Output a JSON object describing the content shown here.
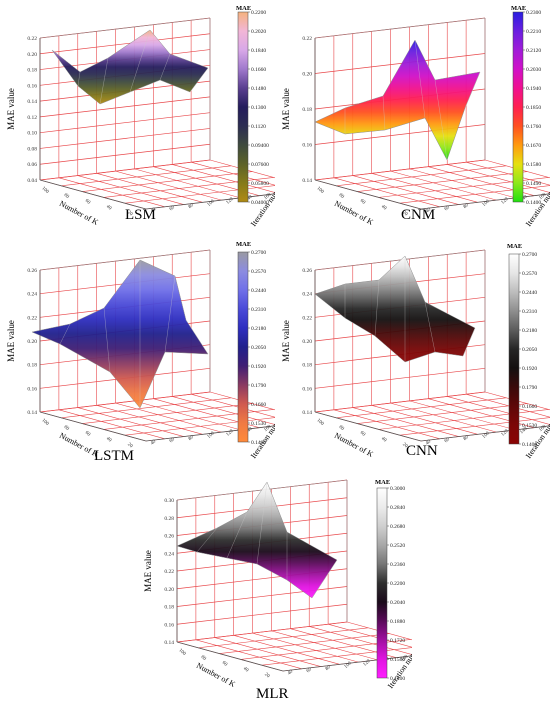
{
  "charts": [
    {
      "id": "lsm",
      "caption": "LSM",
      "zlabel": "MAE value",
      "xlabel": "Number of K",
      "ylabel": "Iteration number",
      "zticks": [
        "0.04",
        "0.06",
        "0.08",
        "0.10",
        "0.12",
        "0.14",
        "0.16",
        "0.18",
        "0.20",
        "0.22"
      ],
      "xticks": [
        "100",
        "80",
        "60",
        "40",
        "20"
      ],
      "yticks": [
        "40",
        "60",
        "80",
        "100",
        "120",
        "140",
        "160",
        "180",
        "200",
        "220"
      ],
      "colorbar": {
        "title": "MAE",
        "labels": [
          "0.2200",
          "0.2020",
          "0.1840",
          "0.1660",
          "0.1480",
          "0.1300",
          "0.1120",
          "0.09400",
          "0.07600",
          "0.05800",
          "0.04000"
        ],
        "colors": [
          "#f4b27e",
          "#f2b6d6",
          "#d8a8e8",
          "#a079cc",
          "#5a3f90",
          "#241c5c",
          "#2c2d52",
          "#3e4a3e",
          "#5c6228",
          "#857a1a",
          "#b08a14"
        ]
      }
    },
    {
      "id": "cnm",
      "caption": "CNM",
      "zlabel": "MAE value",
      "xlabel": "Number of K",
      "ylabel": "Iteration number",
      "zticks": [
        "0.14",
        "0.16",
        "0.18",
        "0.20",
        "0.22"
      ],
      "xticks": [
        "100",
        "80",
        "60",
        "40",
        "20"
      ],
      "yticks": [
        "40",
        "60",
        "80",
        "100",
        "120",
        "140",
        "160",
        "180",
        "200",
        "220"
      ],
      "colorbar": {
        "title": "MAE",
        "labels": [
          "0.2300",
          "0.2210",
          "0.2120",
          "0.2030",
          "0.1940",
          "0.1850",
          "0.1760",
          "0.1670",
          "0.1580",
          "0.1490",
          "0.1400"
        ],
        "colors": [
          "#2a1fe0",
          "#6a1ee0",
          "#a01cd8",
          "#d010c8",
          "#f01090",
          "#ff2050",
          "#ff5020",
          "#ff9a10",
          "#e6e010",
          "#8ee81a",
          "#20e010"
        ]
      }
    },
    {
      "id": "lstm",
      "caption": "LSTM",
      "zlabel": "MAE value",
      "xlabel": "Number of K",
      "ylabel": "Iteration number",
      "zticks": [
        "0.14",
        "0.16",
        "0.18",
        "0.20",
        "0.22",
        "0.24",
        "0.26"
      ],
      "xticks": [
        "100",
        "80",
        "60",
        "40",
        "20"
      ],
      "yticks": [
        "40",
        "60",
        "80",
        "100",
        "120",
        "140",
        "160",
        "180",
        "200",
        "220"
      ],
      "colorbar": {
        "title": "MAE",
        "labels": [
          "0.2700",
          "0.2570",
          "0.2440",
          "0.2310",
          "0.2180",
          "0.2050",
          "0.1920",
          "0.1790",
          "0.1660",
          "0.1530",
          "0.1400"
        ],
        "colors": [
          "#9a9aa2",
          "#8c8ce0",
          "#7070e8",
          "#4a4ad8",
          "#2e2ec0",
          "#20208c",
          "#401e74",
          "#8a3a62",
          "#d05a50",
          "#f07a44",
          "#ff8a3a"
        ]
      }
    },
    {
      "id": "cnn",
      "caption": "CNN",
      "zlabel": "MAE value",
      "xlabel": "Number of K",
      "ylabel": "Iteration number",
      "zticks": [
        "0.14",
        "0.16",
        "0.18",
        "0.20",
        "0.22",
        "0.24",
        "0.26"
      ],
      "xticks": [
        "100",
        "80",
        "60",
        "40",
        "20"
      ],
      "yticks": [
        "40",
        "60",
        "80",
        "100",
        "120",
        "140",
        "160",
        "180",
        "200",
        "220"
      ],
      "colorbar": {
        "title": "MAE",
        "labels": [
          "0.2700",
          "0.2570",
          "0.2440",
          "0.2310",
          "0.2180",
          "0.2050",
          "0.1920",
          "0.1790",
          "0.1660",
          "0.1530",
          "0.1400"
        ],
        "colors": [
          "#ffffff",
          "#e6e6e6",
          "#bdbdbd",
          "#8e8e8e",
          "#5c5c5c",
          "#262626",
          "#141010",
          "#3a0a0a",
          "#5e0808",
          "#7c0606",
          "#8a0404"
        ]
      }
    },
    {
      "id": "mlr",
      "caption": "MLR",
      "zlabel": "MAE value",
      "xlabel": "Number of K",
      "ylabel": "Iteration number",
      "zticks": [
        "0.14",
        "0.16",
        "0.18",
        "0.20",
        "0.22",
        "0.24",
        "0.26",
        "0.28",
        "0.30"
      ],
      "xticks": [
        "100",
        "80",
        "60",
        "40",
        "20"
      ],
      "yticks": [
        "40",
        "60",
        "80",
        "100",
        "120",
        "140",
        "160",
        "180",
        "200",
        "220"
      ],
      "colorbar": {
        "title": "MAE",
        "labels": [
          "0.3000",
          "0.2840",
          "0.2680",
          "0.2520",
          "0.2360",
          "0.2200",
          "0.2040",
          "0.1880",
          "0.1720",
          "0.1560",
          "0.1400"
        ],
        "colors": [
          "#ffffff",
          "#ececec",
          "#cfcfcf",
          "#a8a8a8",
          "#767676",
          "#2e2e2e",
          "#1a0a1a",
          "#5a0a5a",
          "#a010a0",
          "#e014e0",
          "#ff1eff"
        ]
      }
    }
  ]
}
